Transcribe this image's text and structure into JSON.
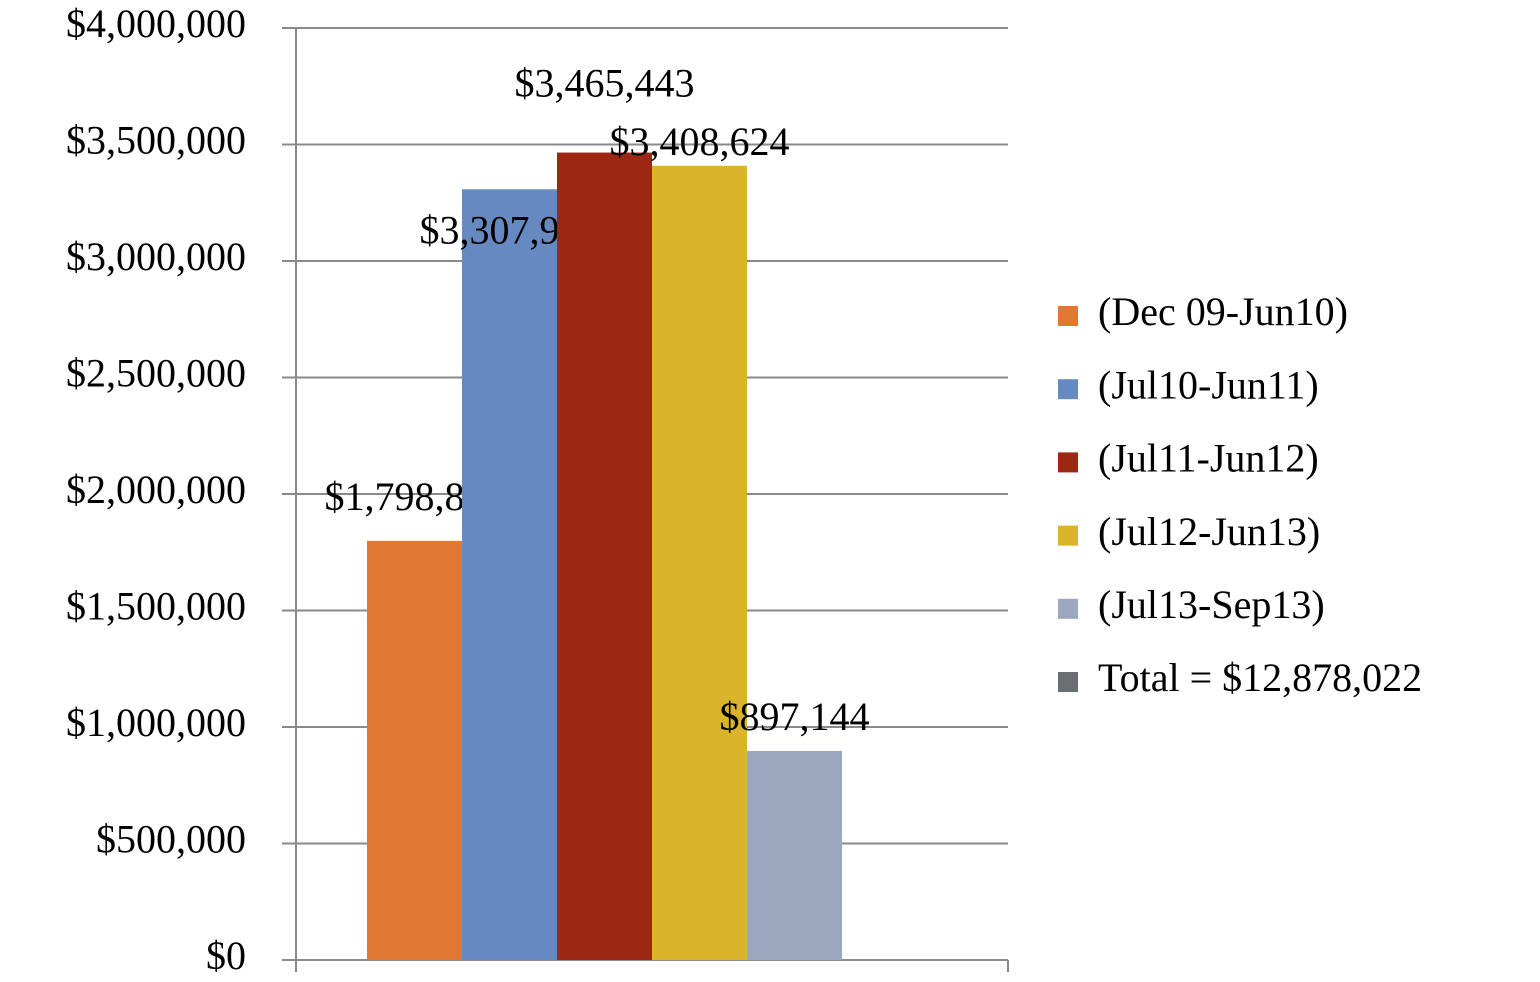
{
  "chart_data": {
    "type": "bar",
    "categories": [
      null
    ],
    "series": [
      {
        "name": "(Dec 09-Jun10)",
        "color": "#e07832",
        "values": [
          1798849
        ],
        "value_labels": [
          "$1,798,849"
        ]
      },
      {
        "name": "(Jul10-Jun11)",
        "color": "#6789c1",
        "values": [
          3307962
        ],
        "value_labels": [
          "$3,307,962"
        ]
      },
      {
        "name": "(Jul11-Jun12)",
        "color": "#9c2713",
        "values": [
          3465443
        ],
        "value_labels": [
          "$3,465,443"
        ]
      },
      {
        "name": "(Jul12-Jun13)",
        "color": "#dab42b",
        "values": [
          3408624
        ],
        "value_labels": [
          "$3,408,624"
        ]
      },
      {
        "name": "(Jul13-Sep13)",
        "color": "#9ba6bf",
        "values": [
          897144
        ],
        "value_labels": [
          "$897,144"
        ]
      },
      {
        "name": "Total = $12,878,022",
        "color": "#6b6e72",
        "values": [
          null
        ]
      }
    ],
    "ylim": [
      0,
      4000000
    ],
    "yticks": [
      {
        "value": 0,
        "label": "$0"
      },
      {
        "value": 500000,
        "label": "$500,000"
      },
      {
        "value": 1000000,
        "label": "$1,000,000"
      },
      {
        "value": 1500000,
        "label": "$1,500,000"
      },
      {
        "value": 2000000,
        "label": "$2,000,000"
      },
      {
        "value": 2500000,
        "label": "$2,500,000"
      },
      {
        "value": 3000000,
        "label": "$3,000,000"
      },
      {
        "value": 3500000,
        "label": "$3,500,000"
      },
      {
        "value": 4000000,
        "label": "$4,000,000"
      }
    ],
    "grid": true,
    "legend": "right"
  }
}
